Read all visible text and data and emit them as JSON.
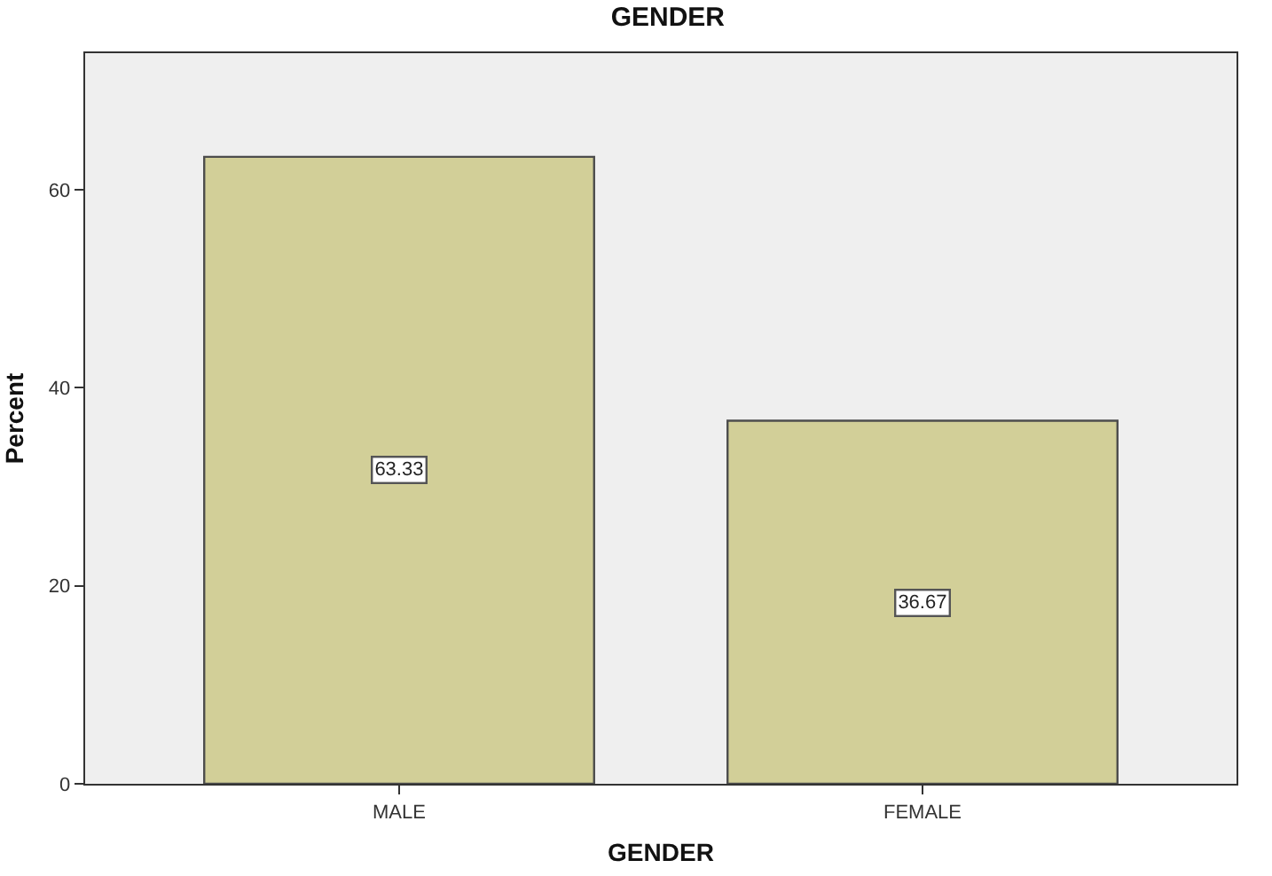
{
  "chart_data": {
    "type": "bar",
    "title": "GENDER",
    "xlabel": "GENDER",
    "ylabel": "Percent",
    "categories": [
      "MALE",
      "FEMALE"
    ],
    "values": [
      63.33,
      36.67
    ],
    "color": "#d2cf98",
    "ylim": [
      0,
      73.8
    ],
    "yticks": [
      0,
      20,
      40,
      60
    ],
    "data_labels": true
  }
}
